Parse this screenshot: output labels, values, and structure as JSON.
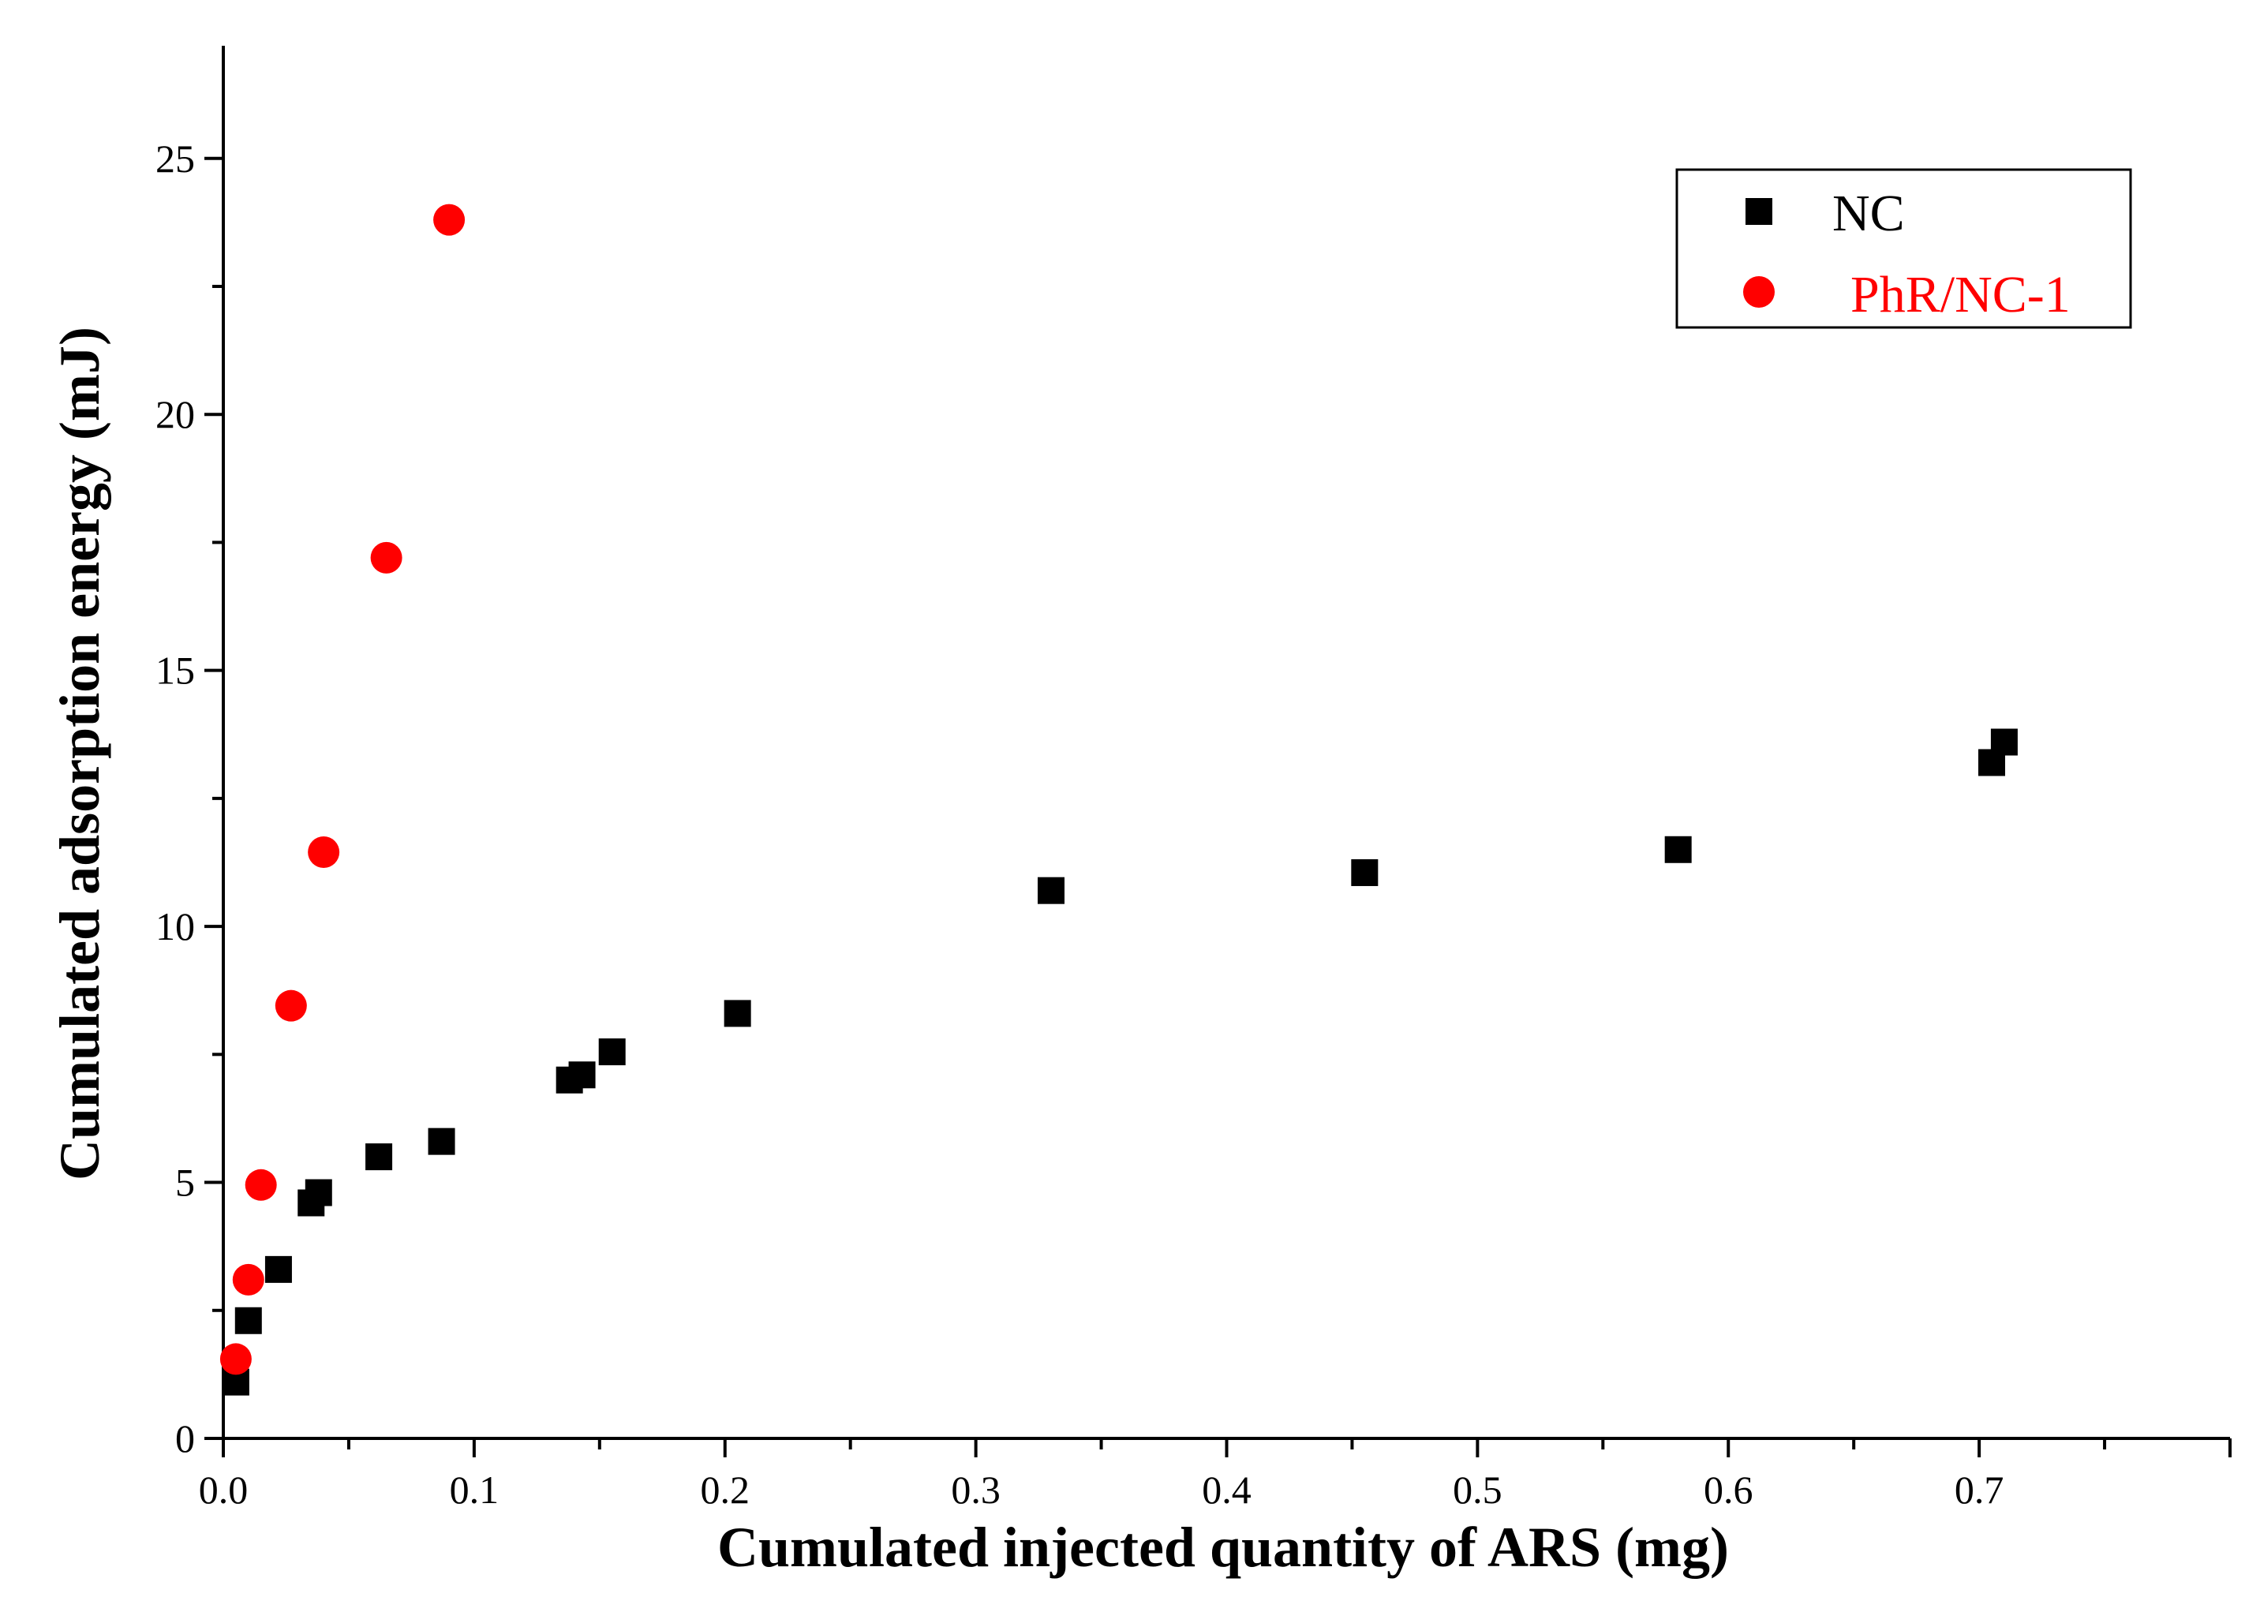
{
  "chart_data": {
    "type": "scatter",
    "title": "",
    "xlabel": "Cumulated injected quantity of ARS (mg)",
    "ylabel": "Cumulated adsorption energy (mJ)",
    "xlim": [
      0,
      0.8
    ],
    "ylim": [
      0,
      27.2
    ],
    "x_ticks": [
      0.0,
      0.1,
      0.2,
      0.3,
      0.4,
      0.5,
      0.6,
      0.7
    ],
    "x_tick_labels": [
      "0.0",
      "0.1",
      "0.2",
      "0.3",
      "0.4",
      "0.5",
      "0.6",
      "0.7"
    ],
    "y_ticks": [
      0,
      5,
      10,
      15,
      20,
      25
    ],
    "y_tick_labels": [
      "0",
      "5",
      "10",
      "15",
      "20",
      "25"
    ],
    "grid": false,
    "legend_position": "top-right",
    "series": [
      {
        "name": "NC",
        "marker": "square",
        "color": "#000000",
        "x": [
          0.005,
          0.01,
          0.022,
          0.035,
          0.038,
          0.062,
          0.087,
          0.138,
          0.143,
          0.155,
          0.205,
          0.33,
          0.455,
          0.58,
          0.705,
          0.71
        ],
        "y": [
          1.1,
          2.3,
          3.3,
          4.6,
          4.8,
          5.5,
          5.8,
          7.0,
          7.1,
          7.55,
          8.3,
          10.7,
          11.05,
          11.5,
          13.2,
          13.6
        ]
      },
      {
        "name": "PhR/NC-1",
        "marker": "circle",
        "color": "#ff0000",
        "x": [
          0.005,
          0.01,
          0.015,
          0.027,
          0.04,
          0.065,
          0.09
        ],
        "y": [
          1.55,
          3.1,
          4.95,
          8.45,
          11.45,
          17.2,
          23.8
        ]
      }
    ]
  }
}
